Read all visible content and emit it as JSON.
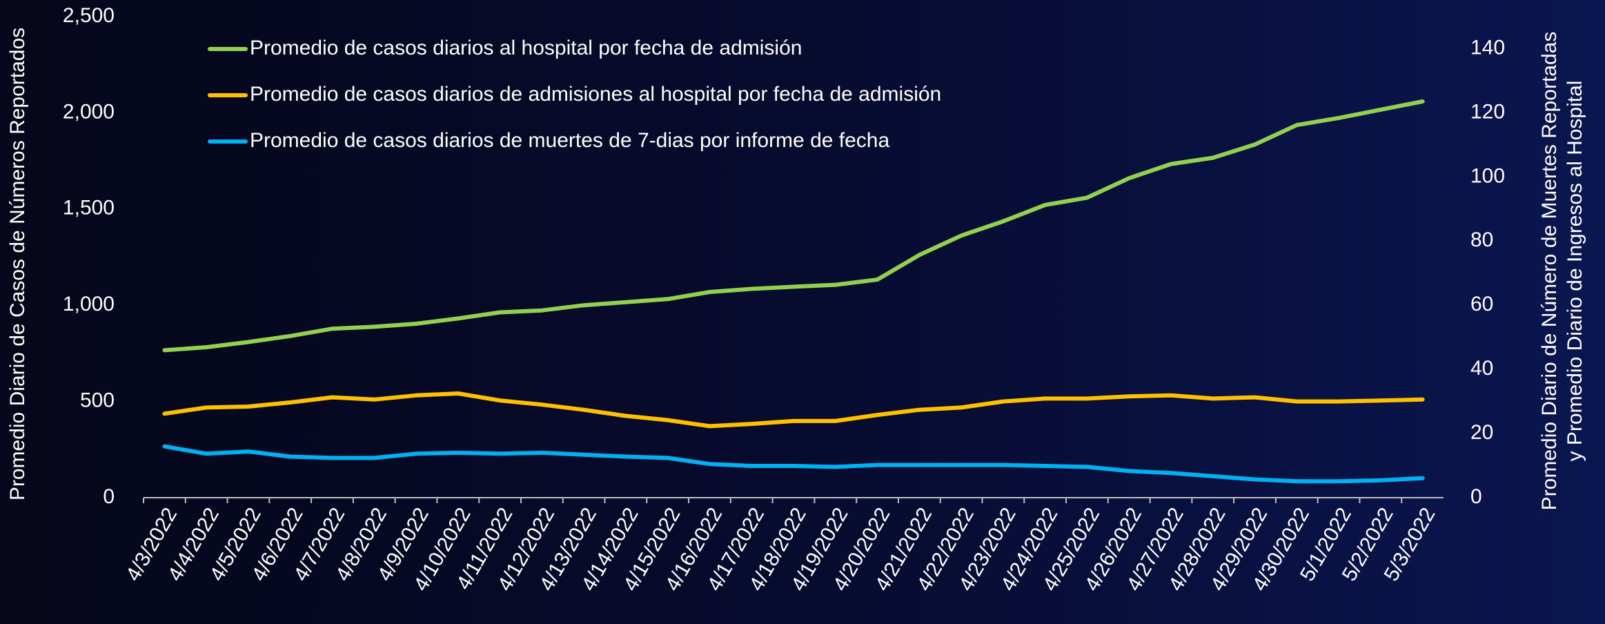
{
  "chart_data": {
    "type": "line",
    "y_label": "Promedio Diario de Casos de Números Reportados",
    "y2_label": [
      "Promedio Diario de Número de Muertes Reportadas",
      "y Promedio  Diario de Ingresos al Hospital"
    ],
    "categories": [
      "4/3/2022",
      "4/4/2022",
      "4/5/2022",
      "4/6/2022",
      "4/7/2022",
      "4/8/2022",
      "4/9/2022",
      "4/10/2022",
      "4/11/2022",
      "4/12/2022",
      "4/13/2022",
      "4/14/2022",
      "4/15/2022",
      "4/16/2022",
      "4/17/2022",
      "4/18/2022",
      "4/19/2022",
      "4/20/2022",
      "4/21/2022",
      "4/22/2022",
      "4/23/2022",
      "4/24/2022",
      "4/25/2022",
      "4/26/2022",
      "4/27/2022",
      "4/28/2022",
      "4/29/2022",
      "4/30/2022",
      "5/1/2022",
      "5/2/2022",
      "5/3/2022"
    ],
    "series": [
      {
        "name": "Promedio de casos diarios al hospital por fecha de admisión",
        "color": "#92d050",
        "axis": "y",
        "values": [
          766,
          782,
          809,
          840,
          878,
          888,
          904,
          931,
          963,
          973,
          1000,
          1016,
          1032,
          1069,
          1085,
          1096,
          1106,
          1133,
          1261,
          1362,
          1436,
          1521,
          1559,
          1660,
          1734,
          1766,
          1835,
          1936,
          1973,
          2016,
          2059
        ]
      },
      {
        "name": "Promedio de casos diarios de admisiones al hospital por fecha de admisión",
        "color": "#ffc000",
        "axis": "y2",
        "values": [
          26.2,
          28.1,
          28.4,
          29.7,
          31.3,
          30.6,
          31.9,
          32.5,
          30.3,
          29.0,
          27.4,
          25.5,
          24.2,
          22.3,
          23.0,
          23.9,
          23.9,
          25.8,
          27.4,
          28.1,
          30.0,
          30.9,
          30.9,
          31.6,
          31.9,
          30.9,
          31.3,
          30.0,
          30.0,
          30.3,
          30.6
        ]
      },
      {
        "name": "Promedio de casos diarios de muertes de 7-dias por informe de fecha",
        "color": "#00b0f0",
        "axis": "y2",
        "values": [
          16.0,
          13.7,
          14.4,
          12.8,
          12.4,
          12.4,
          13.7,
          14.0,
          13.7,
          14.0,
          13.4,
          12.8,
          12.4,
          10.5,
          9.9,
          9.9,
          9.6,
          10.2,
          10.2,
          10.2,
          10.2,
          9.9,
          9.6,
          8.3,
          7.7,
          6.7,
          5.7,
          5.1,
          5.1,
          5.4,
          6.1
        ]
      }
    ],
    "ylim": [
      0,
      2500
    ],
    "yticks": [
      0,
      500,
      {
        "value": 1000,
        "label": "1,000"
      },
      {
        "value": 1500,
        "label": "1,500"
      },
      {
        "value": 2000,
        "label": "2,000"
      },
      {
        "value": 2500,
        "label": "2,500"
      }
    ],
    "y2lim": [
      0,
      150
    ],
    "y2ticks": [
      0,
      20,
      40,
      60,
      80,
      100,
      120,
      140
    ],
    "grid": false,
    "legend": "top-left"
  }
}
